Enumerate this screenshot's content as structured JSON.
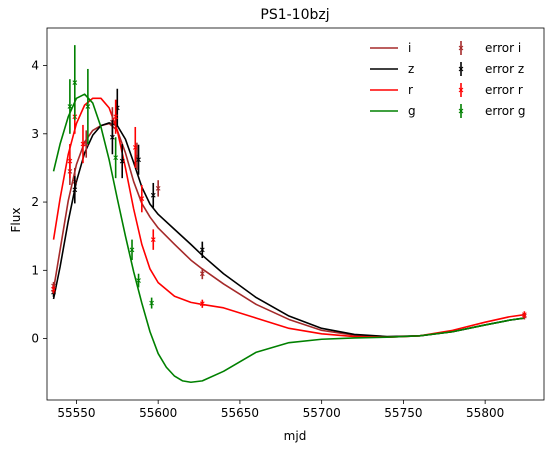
{
  "chart_data": {
    "type": "line",
    "title": "PS1-10bzj",
    "xlabel": "mjd",
    "ylabel": "Flux",
    "xlim": [
      55532,
      55836
    ],
    "ylim": [
      -0.9,
      4.55
    ],
    "x_ticks": [
      55550,
      55600,
      55650,
      55700,
      55750,
      55800
    ],
    "y_ticks": [
      0,
      1,
      2,
      3,
      4
    ],
    "grid": false,
    "legend_position": "top-right",
    "series": [
      {
        "name": "i",
        "kind": "model",
        "color": "#a52a2a",
        "points": [
          [
            55536,
            0.72
          ],
          [
            55540,
            1.3
          ],
          [
            55545,
            2.02
          ],
          [
            55550,
            2.55
          ],
          [
            55555,
            2.88
          ],
          [
            55560,
            3.05
          ],
          [
            55565,
            3.12
          ],
          [
            55570,
            3.15
          ],
          [
            55575,
            3.05
          ],
          [
            55580,
            2.72
          ],
          [
            55585,
            2.3
          ],
          [
            55590,
            1.98
          ],
          [
            55595,
            1.78
          ],
          [
            55600,
            1.62
          ],
          [
            55610,
            1.38
          ],
          [
            55620,
            1.15
          ],
          [
            55627,
            1.02
          ],
          [
            55640,
            0.8
          ],
          [
            55660,
            0.5
          ],
          [
            55680,
            0.28
          ],
          [
            55700,
            0.12
          ],
          [
            55720,
            0.05
          ],
          [
            55740,
            0.02
          ],
          [
            55760,
            0.04
          ],
          [
            55780,
            0.1
          ],
          [
            55800,
            0.2
          ],
          [
            55815,
            0.27
          ],
          [
            55824,
            0.3
          ]
        ]
      },
      {
        "name": "z",
        "kind": "model",
        "color": "#000000",
        "points": [
          [
            55536,
            0.58
          ],
          [
            55540,
            1.05
          ],
          [
            55545,
            1.72
          ],
          [
            55550,
            2.3
          ],
          [
            55555,
            2.72
          ],
          [
            55560,
            2.98
          ],
          [
            55565,
            3.12
          ],
          [
            55570,
            3.16
          ],
          [
            55575,
            3.12
          ],
          [
            55580,
            2.92
          ],
          [
            55585,
            2.58
          ],
          [
            55590,
            2.22
          ],
          [
            55595,
            1.97
          ],
          [
            55600,
            1.82
          ],
          [
            55610,
            1.6
          ],
          [
            55620,
            1.38
          ],
          [
            55627,
            1.22
          ],
          [
            55640,
            0.95
          ],
          [
            55660,
            0.6
          ],
          [
            55680,
            0.33
          ],
          [
            55700,
            0.15
          ],
          [
            55720,
            0.06
          ],
          [
            55740,
            0.03
          ],
          [
            55760,
            0.04
          ],
          [
            55780,
            0.1
          ],
          [
            55800,
            0.2
          ],
          [
            55815,
            0.27
          ],
          [
            55824,
            0.3
          ]
        ]
      },
      {
        "name": "r",
        "kind": "model",
        "color": "#ff0000",
        "points": [
          [
            55536,
            1.45
          ],
          [
            55540,
            2.05
          ],
          [
            55545,
            2.7
          ],
          [
            55550,
            3.15
          ],
          [
            55555,
            3.42
          ],
          [
            55560,
            3.52
          ],
          [
            55565,
            3.52
          ],
          [
            55570,
            3.38
          ],
          [
            55575,
            3.05
          ],
          [
            55580,
            2.5
          ],
          [
            55585,
            1.9
          ],
          [
            55590,
            1.38
          ],
          [
            55595,
            1.02
          ],
          [
            55600,
            0.82
          ],
          [
            55610,
            0.62
          ],
          [
            55620,
            0.53
          ],
          [
            55627,
            0.5
          ],
          [
            55640,
            0.45
          ],
          [
            55660,
            0.3
          ],
          [
            55680,
            0.15
          ],
          [
            55700,
            0.07
          ],
          [
            55720,
            0.03
          ],
          [
            55740,
            0.02
          ],
          [
            55760,
            0.04
          ],
          [
            55780,
            0.12
          ],
          [
            55800,
            0.24
          ],
          [
            55815,
            0.32
          ],
          [
            55824,
            0.35
          ]
        ]
      },
      {
        "name": "g",
        "kind": "model",
        "color": "#008000",
        "points": [
          [
            55536,
            2.45
          ],
          [
            55540,
            2.85
          ],
          [
            55545,
            3.25
          ],
          [
            55550,
            3.52
          ],
          [
            55555,
            3.58
          ],
          [
            55560,
            3.45
          ],
          [
            55565,
            3.1
          ],
          [
            55570,
            2.62
          ],
          [
            55575,
            2.05
          ],
          [
            55580,
            1.5
          ],
          [
            55585,
            0.98
          ],
          [
            55590,
            0.52
          ],
          [
            55595,
            0.1
          ],
          [
            55600,
            -0.22
          ],
          [
            55605,
            -0.42
          ],
          [
            55610,
            -0.55
          ],
          [
            55615,
            -0.62
          ],
          [
            55620,
            -0.64
          ],
          [
            55627,
            -0.62
          ],
          [
            55640,
            -0.48
          ],
          [
            55660,
            -0.2
          ],
          [
            55680,
            -0.06
          ],
          [
            55700,
            -0.01
          ],
          [
            55720,
            0.01
          ],
          [
            55740,
            0.02
          ],
          [
            55760,
            0.04
          ],
          [
            55780,
            0.1
          ],
          [
            55800,
            0.2
          ],
          [
            55815,
            0.27
          ],
          [
            55824,
            0.3
          ]
        ]
      },
      {
        "name": "error i",
        "kind": "errorbar",
        "color": "#a52a2a",
        "points": [
          [
            55536,
            0.77,
            0.06
          ],
          [
            55546,
            2.45,
            0.2
          ],
          [
            55549,
            2.3,
            0.2
          ],
          [
            55556,
            2.85,
            0.2
          ],
          [
            55572,
            3.17,
            0.22
          ],
          [
            55587,
            2.67,
            0.2
          ],
          [
            55600,
            2.2,
            0.12
          ],
          [
            55627,
            0.95,
            0.08
          ],
          [
            55824,
            0.33,
            0.05
          ]
        ]
      },
      {
        "name": "error z",
        "kind": "errorbar",
        "color": "#000000",
        "points": [
          [
            55536,
            0.68,
            0.07
          ],
          [
            55549,
            2.18,
            0.2
          ],
          [
            55572,
            2.95,
            0.25
          ],
          [
            55575,
            3.38,
            0.28
          ],
          [
            55578,
            2.6,
            0.25
          ],
          [
            55588,
            2.62,
            0.22
          ],
          [
            55597,
            2.1,
            0.18
          ],
          [
            55627,
            1.3,
            0.12
          ]
        ]
      },
      {
        "name": "error r",
        "kind": "errorbar",
        "color": "#ff0000",
        "points": [
          [
            55536,
            0.72,
            0.06
          ],
          [
            55546,
            2.6,
            0.25
          ],
          [
            55549,
            3.25,
            0.25
          ],
          [
            55554,
            2.85,
            0.28
          ],
          [
            55574,
            3.25,
            0.25
          ],
          [
            55586,
            2.8,
            0.3
          ],
          [
            55590,
            2.05,
            0.2
          ],
          [
            55597,
            1.45,
            0.15
          ],
          [
            55627,
            0.51,
            0.06
          ],
          [
            55824,
            0.35,
            0.05
          ]
        ]
      },
      {
        "name": "error g",
        "kind": "errorbar",
        "color": "#008000",
        "points": [
          [
            55546,
            3.4,
            0.4
          ],
          [
            55549,
            3.75,
            0.55
          ],
          [
            55557,
            3.4,
            0.55
          ],
          [
            55574,
            2.65,
            0.3
          ],
          [
            55584,
            1.3,
            0.15
          ],
          [
            55588,
            0.85,
            0.1
          ],
          [
            55596,
            0.52,
            0.08
          ]
        ]
      }
    ]
  }
}
